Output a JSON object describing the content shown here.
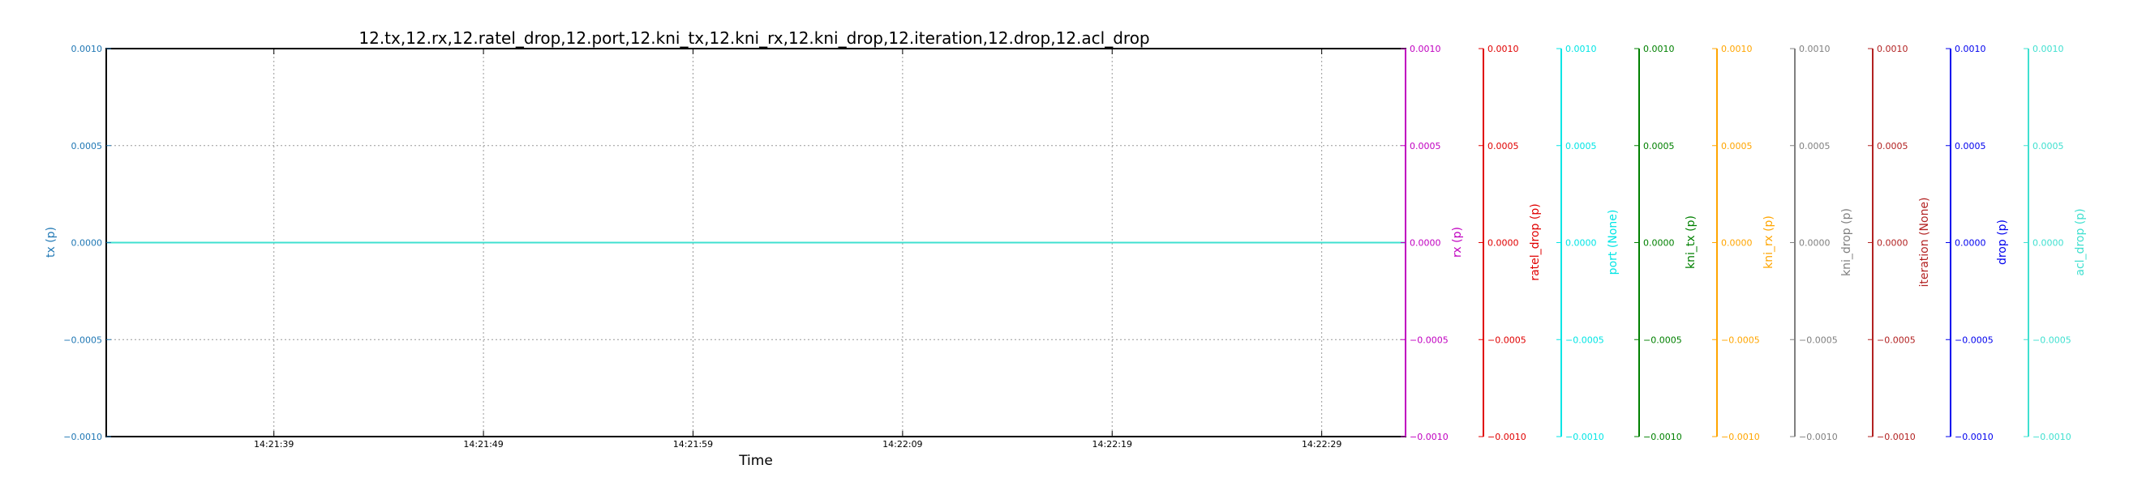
{
  "chart_data": {
    "type": "line",
    "title": "12.tx,12.rx,12.ratel_drop,12.port,12.kni_tx,12.kni_rx,12.kni_drop,12.iteration,12.drop,12.acl_drop",
    "xlabel": "Time",
    "x_ticks": [
      "14:21:39",
      "14:21:49",
      "14:21:59",
      "14:22:09",
      "14:22:19",
      "14:22:29"
    ],
    "xlim": [
      "14:21:31",
      "14:22:33"
    ],
    "grid": true,
    "y_ticks": [
      "0.0010",
      "0.0005",
      "0.0000",
      "−0.0005",
      "−0.0010"
    ],
    "ylim": [
      -0.001,
      0.001
    ],
    "series": [
      {
        "name": "tx (p)",
        "color": "#1f77b4",
        "axis": "left",
        "values": [
          0,
          0
        ]
      },
      {
        "name": "rx (p)",
        "color": "#c000c0",
        "axis": "right",
        "values": [
          0,
          0
        ]
      },
      {
        "name": "ratel_drop (p)",
        "color": "#e00000",
        "axis": "right",
        "values": [
          0,
          0
        ]
      },
      {
        "name": "port (None)",
        "color": "#00e5e5",
        "axis": "right",
        "values": [
          0,
          0
        ]
      },
      {
        "name": "kni_tx (p)",
        "color": "#008000",
        "axis": "right",
        "values": [
          0,
          0
        ]
      },
      {
        "name": "kni_rx (p)",
        "color": "#ffa500",
        "axis": "right",
        "values": [
          0,
          0
        ]
      },
      {
        "name": "kni_drop (p)",
        "color": "#808080",
        "axis": "right",
        "values": [
          0,
          0
        ]
      },
      {
        "name": "iteration (None)",
        "color": "#b22222",
        "axis": "right",
        "values": [
          0,
          0
        ]
      },
      {
        "name": "drop (p)",
        "color": "#0000ee",
        "axis": "right",
        "values": [
          0,
          0
        ]
      },
      {
        "name": "acl_drop (p)",
        "color": "#40e0d0",
        "axis": "right",
        "values": [
          0,
          0
        ]
      }
    ]
  }
}
